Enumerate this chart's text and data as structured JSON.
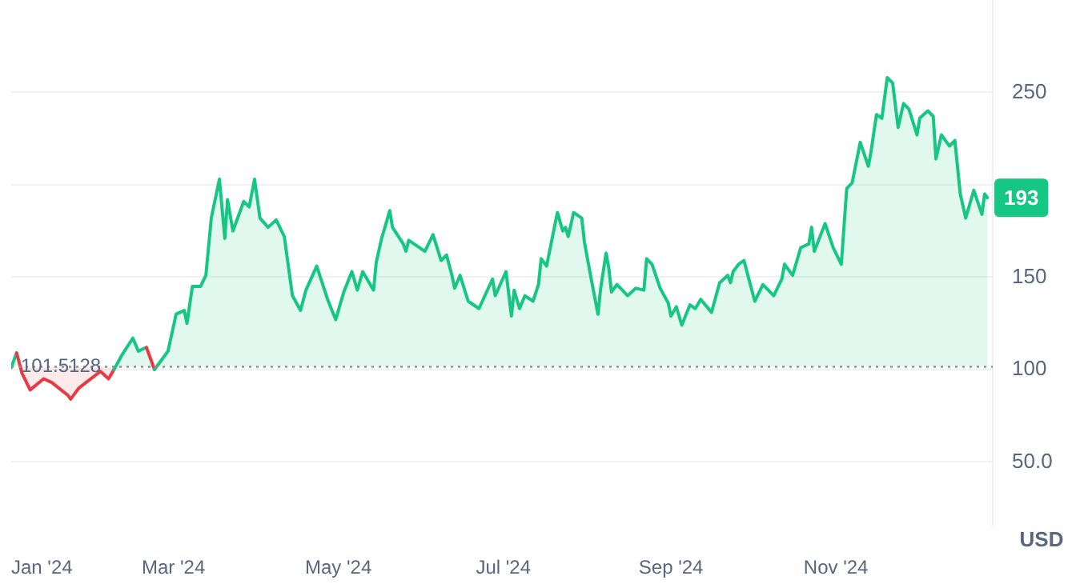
{
  "chart_data": {
    "type": "area",
    "ylabel": "USD",
    "x": [
      "2024-01-01",
      "2024-01-03",
      "2024-01-05",
      "2024-01-08",
      "2024-01-13",
      "2024-01-16",
      "2024-01-22",
      "2024-01-23",
      "2024-01-26",
      "2024-02-03",
      "2024-02-06",
      "2024-02-08",
      "2024-02-11",
      "2024-02-15",
      "2024-02-17",
      "2024-02-20",
      "2024-02-23",
      "2024-02-25",
      "2024-02-28",
      "2024-03-02",
      "2024-03-05",
      "2024-03-06",
      "2024-03-08",
      "2024-03-11",
      "2024-03-13",
      "2024-03-15",
      "2024-03-18",
      "2024-03-20",
      "2024-03-21",
      "2024-03-23",
      "2024-03-27",
      "2024-03-29",
      "2024-03-31",
      "2024-04-02",
      "2024-04-05",
      "2024-04-08",
      "2024-04-11",
      "2024-04-14",
      "2024-04-17",
      "2024-04-19",
      "2024-04-23",
      "2024-04-27",
      "2024-04-30",
      "2024-05-03",
      "2024-05-06",
      "2024-05-08",
      "2024-05-10",
      "2024-05-14",
      "2024-05-15",
      "2024-05-17",
      "2024-05-20",
      "2024-05-21",
      "2024-05-25",
      "2024-05-26",
      "2024-05-27",
      "2024-06-02",
      "2024-06-05",
      "2024-06-08",
      "2024-06-10",
      "2024-06-12",
      "2024-06-13",
      "2024-06-15",
      "2024-06-18",
      "2024-06-22",
      "2024-06-27",
      "2024-06-28",
      "2024-07-02",
      "2024-07-04",
      "2024-07-05",
      "2024-07-07",
      "2024-07-09",
      "2024-07-12",
      "2024-07-14",
      "2024-07-15",
      "2024-07-17",
      "2024-07-21",
      "2024-07-23",
      "2024-07-24",
      "2024-07-25",
      "2024-07-27",
      "2024-07-30",
      "2024-07-31",
      "2024-08-02",
      "2024-08-05",
      "2024-08-06",
      "2024-08-08",
      "2024-08-09",
      "2024-08-10",
      "2024-08-12",
      "2024-08-16",
      "2024-08-19",
      "2024-08-22",
      "2024-08-23",
      "2024-08-25",
      "2024-08-28",
      "2024-08-31",
      "2024-09-01",
      "2024-09-03",
      "2024-09-05",
      "2024-09-08",
      "2024-09-10",
      "2024-09-12",
      "2024-09-16",
      "2024-09-19",
      "2024-09-22",
      "2024-09-23",
      "2024-09-24",
      "2024-09-26",
      "2024-09-28",
      "2024-10-02",
      "2024-10-05",
      "2024-10-09",
      "2024-10-12",
      "2024-10-13",
      "2024-10-16",
      "2024-10-19",
      "2024-10-22",
      "2024-10-23",
      "2024-10-24",
      "2024-10-28",
      "2024-10-31",
      "2024-11-03",
      "2024-11-05",
      "2024-11-07",
      "2024-11-10",
      "2024-11-13",
      "2024-11-14",
      "2024-11-16",
      "2024-11-18",
      "2024-11-20",
      "2024-11-22",
      "2024-11-24",
      "2024-11-26",
      "2024-11-28",
      "2024-12-01",
      "2024-12-02",
      "2024-12-05",
      "2024-12-07",
      "2024-12-08",
      "2024-12-10",
      "2024-12-13",
      "2024-12-15",
      "2024-12-17",
      "2024-12-19",
      "2024-12-22",
      "2024-12-25",
      "2024-12-26",
      "2024-12-27"
    ],
    "series": [
      {
        "color": "#16c784",
        "values": [
          101,
          109,
          98,
          89,
          95,
          93,
          86,
          84,
          90,
          99,
          95,
          100,
          108,
          117,
          110,
          112,
          100,
          104,
          110,
          130,
          132,
          125,
          145,
          145,
          151,
          182,
          203,
          171,
          192,
          175,
          191,
          188,
          203,
          182,
          177,
          181,
          172,
          140,
          132,
          143,
          156,
          138,
          127,
          142,
          153,
          143,
          153,
          143,
          158,
          171,
          186,
          177,
          168,
          164,
          170,
          164,
          173,
          159,
          162,
          151,
          144,
          151,
          137,
          133,
          149,
          140,
          153,
          129,
          143,
          133,
          140,
          137,
          146,
          160,
          156,
          185,
          175,
          177,
          172,
          185,
          182,
          169,
          153,
          130,
          144,
          163,
          155,
          142,
          146,
          140,
          144,
          143,
          160,
          157,
          144,
          136,
          129,
          134,
          124,
          135,
          133,
          138,
          131,
          147,
          151,
          147,
          153,
          157,
          159,
          137,
          146,
          140,
          149,
          157,
          151,
          166,
          168,
          177,
          164,
          179,
          166,
          157,
          198,
          201,
          223,
          210,
          218,
          238,
          236,
          258,
          255,
          231,
          244,
          241,
          227,
          236,
          240,
          237,
          214,
          227,
          221,
          224,
          195,
          182,
          197,
          184,
          195,
          193
        ],
        "colors": [
          "#ea3943",
          "#16c784",
          "#ea3943",
          "#ea3943",
          "#ea3943",
          "#ea3943",
          "#ea3943",
          "#ea3943",
          "#ea3943",
          "#ea3943",
          "#ea3943",
          "#ea3943",
          "#16c784",
          "#16c784",
          "#16c784",
          "#16c784",
          "#ea3943",
          "#16c784",
          "#16c784",
          "#16c784",
          "#16c784",
          "#16c784",
          "#16c784",
          "#16c784",
          "#16c784",
          "#16c784",
          "#16c784",
          "#16c784",
          "#16c784",
          "#16c784",
          "#16c784",
          "#16c784",
          "#16c784",
          "#16c784",
          "#16c784",
          "#16c784",
          "#16c784",
          "#16c784",
          "#16c784",
          "#16c784",
          "#16c784",
          "#16c784",
          "#16c784",
          "#16c784",
          "#16c784",
          "#16c784",
          "#16c784",
          "#16c784",
          "#16c784",
          "#16c784",
          "#16c784",
          "#16c784",
          "#16c784",
          "#16c784",
          "#16c784",
          "#16c784",
          "#16c784",
          "#16c784",
          "#16c784",
          "#16c784",
          "#16c784",
          "#16c784",
          "#16c784",
          "#16c784",
          "#16c784",
          "#16c784",
          "#16c784",
          "#16c784",
          "#16c784",
          "#16c784",
          "#16c784",
          "#16c784",
          "#16c784",
          "#16c784",
          "#16c784",
          "#16c784",
          "#16c784",
          "#16c784",
          "#16c784",
          "#16c784",
          "#16c784",
          "#16c784",
          "#16c784",
          "#16c784",
          "#16c784",
          "#16c784",
          "#16c784",
          "#16c784",
          "#16c784",
          "#16c784",
          "#16c784",
          "#16c784",
          "#16c784",
          "#16c784",
          "#16c784",
          "#16c784",
          "#16c784",
          "#16c784",
          "#16c784",
          "#16c784",
          "#16c784",
          "#16c784",
          "#16c784",
          "#16c784",
          "#16c784",
          "#16c784",
          "#16c784",
          "#16c784",
          "#16c784",
          "#16c784",
          "#16c784",
          "#16c784",
          "#16c784",
          "#16c784",
          "#16c784",
          "#16c784",
          "#16c784",
          "#16c784",
          "#16c784",
          "#16c784",
          "#16c784",
          "#16c784",
          "#16c784",
          "#16c784",
          "#16c784",
          "#16c784",
          "#16c784",
          "#16c784",
          "#16c784",
          "#16c784",
          "#16c784",
          "#16c784",
          "#16c784",
          "#16c784",
          "#16c784",
          "#16c784",
          "#16c784",
          "#16c784",
          "#16c784",
          "#16c784",
          "#16c784",
          "#16c784",
          "#16c784",
          "#16c784",
          "#16c784",
          "#16c784",
          "#16c784",
          "#16c784"
        ]
      }
    ],
    "xlim": [
      "2024-01-01",
      "2024-12-29"
    ],
    "xticks": [
      {
        "value": "2024-01-01",
        "label": "Jan '24"
      },
      {
        "value": "2024-03-01",
        "label": "Mar '24"
      },
      {
        "value": "2024-05-01",
        "label": "May '24"
      },
      {
        "value": "2024-07-01",
        "label": "Jul '24"
      },
      {
        "value": "2024-09-01",
        "label": "Sep '24"
      },
      {
        "value": "2024-11-01",
        "label": "Nov '24"
      }
    ],
    "ylim": [
      16,
      300
    ],
    "yticks": [
      {
        "value": 50,
        "label": "50.0"
      },
      100,
      150,
      {
        "value": 200,
        "label": null
      },
      250
    ],
    "grid": "y",
    "ref_lines": [
      {
        "axis": "y",
        "value": 101.5128,
        "label": "101.5128",
        "color": "#8a8f99",
        "line_style": "dotted"
      }
    ],
    "annotations": [
      {
        "text": "193",
        "x": "2024-12-27",
        "y": 193
      }
    ],
    "legend": false,
    "marker": "none",
    "line_style": "solid"
  }
}
